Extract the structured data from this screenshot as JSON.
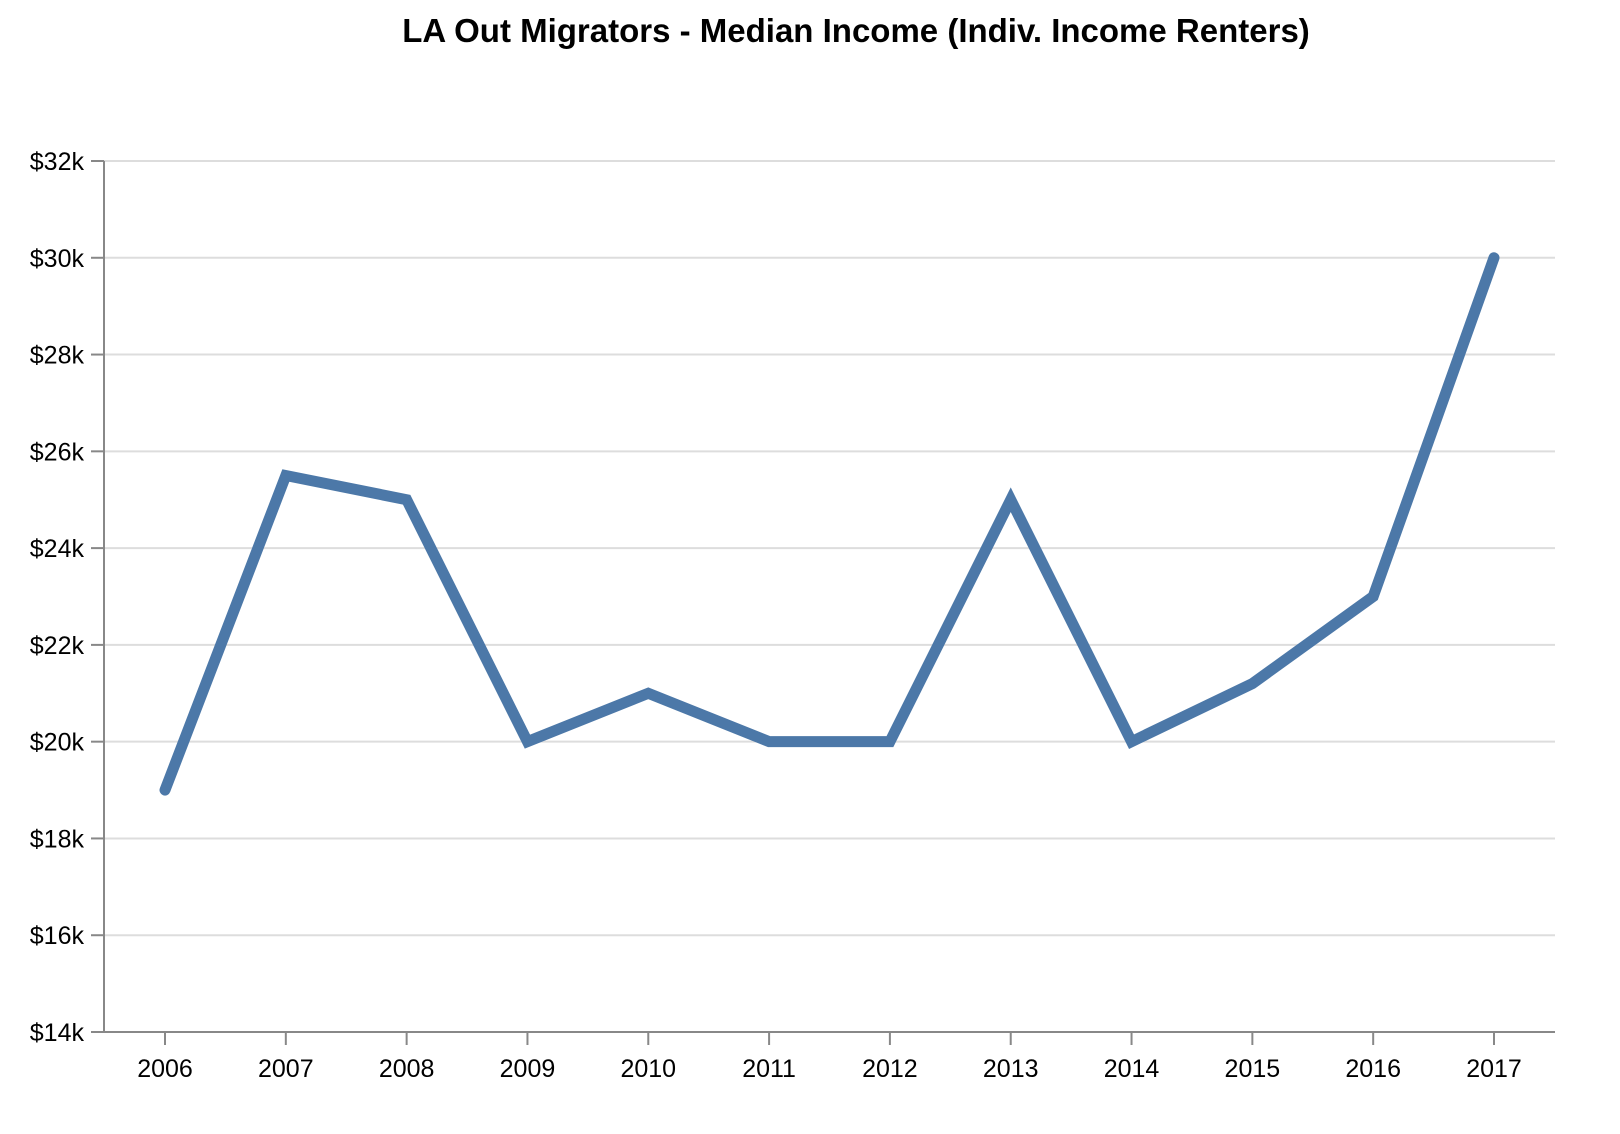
{
  "chart_data": {
    "type": "line",
    "title": "LA Out Migrators - Median Income (Indiv. Income Renters)",
    "xlabel": "",
    "ylabel": "",
    "x": [
      "2006",
      "2007",
      "2008",
      "2009",
      "2010",
      "2011",
      "2012",
      "2013",
      "2014",
      "2015",
      "2016",
      "2017"
    ],
    "series": [
      {
        "values": [
          19000,
          25500,
          25000,
          20000,
          21000,
          20000,
          20000,
          25000,
          20000,
          21200,
          23000,
          30000
        ]
      }
    ],
    "ylim": [
      14000,
      32000
    ],
    "y_ticks": [
      14000,
      16000,
      18000,
      20000,
      22000,
      24000,
      26000,
      28000,
      30000,
      32000
    ],
    "y_tick_labels": [
      "$14k",
      "$16k",
      "$18k",
      "$20k",
      "$22k",
      "$24k",
      "$26k",
      "$28k",
      "$30k",
      "$32k"
    ],
    "grid": true,
    "line_color": "#4c78a8",
    "grid_color": "#dddddd",
    "axis_color": "#888888"
  }
}
